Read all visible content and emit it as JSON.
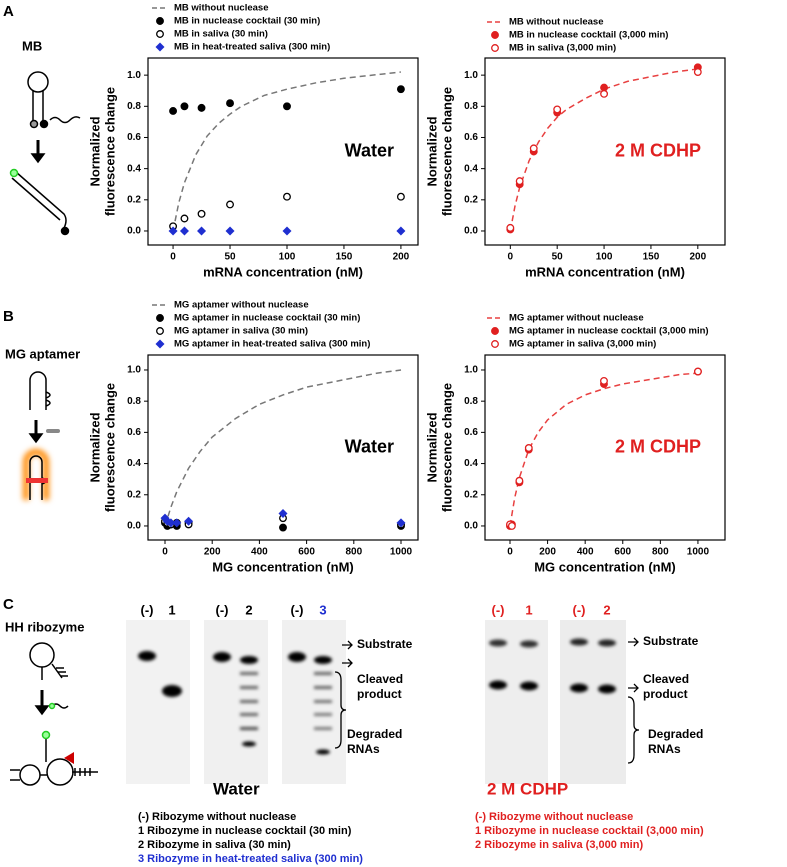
{
  "panels": [
    {
      "letter": "A",
      "title": "MB"
    },
    {
      "letter": "B",
      "title": "MG aptamer"
    },
    {
      "letter": "C",
      "title": "HH ribozyme"
    }
  ],
  "chart_data": [
    {
      "type": "scatter",
      "xlabel": "mRNA concentration (nM)",
      "ylabel": [
        "Normalized",
        "fluorescence change"
      ],
      "annotation": "Water",
      "annotation_color": "#000000",
      "xlim": [
        -22,
        215
      ],
      "xticks": [
        0,
        50,
        100,
        150,
        200
      ],
      "ylim": [
        -0.09,
        1.11
      ],
      "yticks": [
        {
          "value": 0,
          "label": "0.0"
        },
        0.2,
        0.4,
        0.6,
        0.8,
        {
          "value": 1,
          "label": "1.0"
        }
      ],
      "legend": "top",
      "series": [
        {
          "name": "MB without nuclease",
          "color": "#777777",
          "style": "dashed",
          "x": [
            0,
            5,
            10,
            20,
            30,
            40,
            50,
            60,
            80,
            100,
            125,
            150,
            175,
            200
          ],
          "values": [
            0,
            0.18,
            0.31,
            0.49,
            0.61,
            0.69,
            0.75,
            0.8,
            0.87,
            0.91,
            0.95,
            0.98,
            1.0,
            1.02
          ]
        },
        {
          "name": "MB in nuclease cocktail (30 min)",
          "color": "#000000",
          "style": "filled",
          "x": [
            0,
            10,
            25,
            50,
            100,
            200
          ],
          "values": [
            0.77,
            0.8,
            0.79,
            0.82,
            0.8,
            0.91
          ]
        },
        {
          "name": "MB in saliva (30 min)",
          "color": "#000000",
          "style": "open",
          "x": [
            0,
            10,
            25,
            50,
            100,
            200
          ],
          "values": [
            0.03,
            0.08,
            0.11,
            0.17,
            0.22,
            0.22
          ]
        },
        {
          "name": "MB in heat-treated saliva (300 min)",
          "color": "#1f2fd0",
          "style": "diamond",
          "x": [
            0,
            10,
            25,
            50,
            100,
            200
          ],
          "values": [
            0,
            0,
            0,
            0,
            0,
            0
          ]
        }
      ]
    },
    {
      "type": "scatter",
      "xlabel": "mRNA concentration (nM)",
      "ylabel": [
        "Normalized",
        "fluorescence change"
      ],
      "annotation": "2 M CDHP",
      "annotation_color": "#e02020",
      "xlim": [
        -27,
        229
      ],
      "xticks": [
        0,
        50,
        100,
        150,
        200
      ],
      "ylim": [
        -0.09,
        1.11
      ],
      "yticks": [
        {
          "value": 0,
          "label": "0.0"
        },
        0.2,
        0.4,
        0.6,
        0.8,
        {
          "value": 1,
          "label": "1.0"
        }
      ],
      "legend": "top",
      "series": [
        {
          "name": "MB without nuclease",
          "color": "#e84040",
          "style": "dashed",
          "x": [
            0,
            5,
            10,
            20,
            30,
            40,
            50,
            60,
            80,
            100,
            125,
            150,
            175,
            200
          ],
          "values": [
            0,
            0.16,
            0.28,
            0.45,
            0.57,
            0.66,
            0.73,
            0.78,
            0.85,
            0.91,
            0.96,
            0.99,
            1.02,
            1.04
          ]
        },
        {
          "name": "MB in nuclease cocktail (3,000 min)",
          "color": "#e02020",
          "style": "filled",
          "x": [
            0,
            10,
            25,
            50,
            100,
            200
          ],
          "values": [
            0.01,
            0.3,
            0.51,
            0.76,
            0.92,
            1.05
          ]
        },
        {
          "name": "MB in saliva (3,000 min)",
          "color": "#e02020",
          "style": "open",
          "x": [
            0,
            10,
            25,
            50,
            100,
            200
          ],
          "values": [
            0.02,
            0.32,
            0.53,
            0.78,
            0.88,
            1.02
          ]
        }
      ]
    },
    {
      "type": "scatter",
      "xlabel": "MG concentration (nM)",
      "ylabel": [
        "Normalized",
        "fluorescence change"
      ],
      "annotation": "Water",
      "annotation_color": "#000000",
      "xlim": [
        -72,
        1072
      ],
      "xticks": [
        0,
        200,
        400,
        600,
        800,
        1000
      ],
      "ylim": [
        -0.09,
        1.096
      ],
      "yticks": [
        {
          "value": 0,
          "label": "0.0"
        },
        0.2,
        0.4,
        0.6,
        0.8,
        {
          "value": 1,
          "label": "1.0"
        }
      ],
      "legend": "top",
      "series": [
        {
          "name": "MG aptamer without nuclease",
          "color": "#777777",
          "style": "dashed",
          "x": [
            0,
            25,
            50,
            100,
            150,
            200,
            300,
            400,
            500,
            600,
            700,
            800,
            900,
            1000
          ],
          "values": [
            0,
            0.12,
            0.22,
            0.37,
            0.48,
            0.57,
            0.69,
            0.78,
            0.84,
            0.89,
            0.92,
            0.95,
            0.98,
            1.0
          ]
        },
        {
          "name": "MG aptamer in nuclease cocktail (30 min)",
          "color": "#000000",
          "style": "filled",
          "x": [
            0,
            10,
            25,
            50,
            100,
            500,
            1000
          ],
          "values": [
            0.02,
            0,
            0.01,
            0,
            0.02,
            -0.01,
            0
          ]
        },
        {
          "name": "MG aptamer in saliva (30 min)",
          "color": "#000000",
          "style": "open",
          "x": [
            0,
            10,
            25,
            50,
            100,
            500,
            1000
          ],
          "values": [
            0.03,
            0.02,
            0.01,
            0.02,
            0.01,
            0.05,
            0.01
          ]
        },
        {
          "name": "MG aptamer in heat-treated saliva (300 min)",
          "color": "#1f2fd0",
          "style": "diamond",
          "x": [
            0,
            10,
            25,
            50,
            100,
            500,
            1000
          ],
          "values": [
            0.05,
            0.03,
            0.02,
            0.02,
            0.03,
            0.08,
            0.02
          ]
        }
      ]
    },
    {
      "type": "scatter",
      "xlabel": "MG concentration (nM)",
      "ylabel": [
        "Normalized",
        "fluorescence change"
      ],
      "annotation": "2 M CDHP",
      "annotation_color": "#e02020",
      "xlim": [
        -133,
        1144
      ],
      "xticks": [
        0,
        200,
        400,
        600,
        800,
        1000
      ],
      "ylim": [
        -0.09,
        1.096
      ],
      "yticks": [
        {
          "value": 0,
          "label": "0.0"
        },
        0.2,
        0.4,
        0.6,
        0.8,
        {
          "value": 1,
          "label": "1.0"
        }
      ],
      "legend": "top",
      "series": [
        {
          "name": "MG aptamer without nuclease",
          "color": "#e84040",
          "style": "dashed",
          "x": [
            0,
            25,
            50,
            100,
            150,
            200,
            300,
            400,
            500,
            600,
            700,
            800,
            900,
            1000
          ],
          "values": [
            0,
            0.18,
            0.31,
            0.49,
            0.6,
            0.68,
            0.78,
            0.84,
            0.88,
            0.91,
            0.93,
            0.95,
            0.97,
            0.98
          ]
        },
        {
          "name": "MG aptamer in nuclease cocktail (3,000 min)",
          "color": "#e02020",
          "style": "filled",
          "x": [
            0,
            10,
            50,
            100,
            500,
            1000
          ],
          "values": [
            0,
            0.01,
            0.28,
            0.49,
            0.91,
            0.99
          ]
        },
        {
          "name": "MG aptamer in saliva (3,000 min)",
          "color": "#e02020",
          "style": "open",
          "x": [
            0,
            10,
            50,
            100,
            500,
            1000
          ],
          "values": [
            0.01,
            0,
            0.29,
            0.5,
            0.93,
            0.99
          ]
        }
      ]
    }
  ],
  "gels": [
    {
      "lanes": [
        {
          "label": "(-)",
          "color": "#000000"
        },
        {
          "label": "1",
          "color": "#000000"
        },
        {
          "label": "(-)",
          "color": "#000000"
        },
        {
          "label": "2",
          "color": "#000000"
        },
        {
          "label": "(-)",
          "color": "#000000"
        },
        {
          "label": "3",
          "color": "#1f2fd0"
        }
      ],
      "condition": "Water",
      "condition_color": "#000000",
      "markers": {
        "substrate": "Substrate",
        "cleaved": [
          "Cleaved",
          "product"
        ],
        "degraded": [
          "Degraded",
          "RNAs"
        ]
      },
      "legend": [
        {
          "text": "(-) Ribozyme without nuclease",
          "color": "#000000"
        },
        {
          "text": "1 Ribozyme in nuclease cocktail (30 min)",
          "color": "#000000"
        },
        {
          "text": "2 Ribozyme in saliva (30 min)",
          "color": "#000000"
        },
        {
          "text": "3 Ribozyme in heat-treated saliva (300 min)",
          "color": "#1f2fd0"
        }
      ]
    },
    {
      "lanes": [
        {
          "label": "(-)",
          "color": "#e02020"
        },
        {
          "label": "1",
          "color": "#e02020"
        },
        {
          "label": "(-)",
          "color": "#e02020"
        },
        {
          "label": "2",
          "color": "#e02020"
        }
      ],
      "condition": "2 M CDHP",
      "condition_color": "#e02020",
      "markers": {
        "substrate": "Substrate",
        "cleaved": [
          "Cleaved",
          "product"
        ],
        "degraded": [
          "Degraded",
          "RNAs"
        ]
      },
      "legend": [
        {
          "text": "(-) Ribozyme without nuclease",
          "color": "#e02020"
        },
        {
          "text": "1 Ribozyme in nuclease cocktail (3,000 min)",
          "color": "#e02020"
        },
        {
          "text": "2 Ribozyme in saliva (3,000 min)",
          "color": "#e02020"
        }
      ]
    }
  ]
}
